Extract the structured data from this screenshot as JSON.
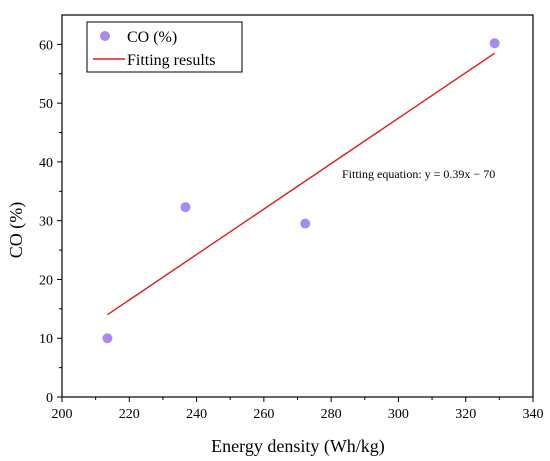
{
  "chart_data": {
    "type": "scatter",
    "xlabel": "Energy density (Wh/kg)",
    "ylabel": "CO (%)",
    "xlim": [
      200,
      340
    ],
    "ylim": [
      0,
      65
    ],
    "xticks": [
      200,
      220,
      240,
      260,
      280,
      300,
      320,
      340
    ],
    "yticks": [
      0,
      10,
      20,
      30,
      40,
      50,
      60
    ],
    "grid": false,
    "legend_position": "top-left",
    "series": [
      {
        "name": "CO (%)",
        "kind": "scatter",
        "color": "#a98bf0",
        "points": [
          {
            "x": 213.5,
            "y": 10.0
          },
          {
            "x": 236.7,
            "y": 32.3
          },
          {
            "x": 272.3,
            "y": 29.5
          },
          {
            "x": 328.6,
            "y": 60.2
          }
        ]
      },
      {
        "name": "Fitting results",
        "kind": "line",
        "color": "#e01b1b",
        "points": [
          {
            "x": 213.5,
            "y": 14.0
          },
          {
            "x": 328.6,
            "y": 58.5
          }
        ]
      }
    ],
    "annotation": "Fitting equation: y = 0.39x − 70"
  }
}
